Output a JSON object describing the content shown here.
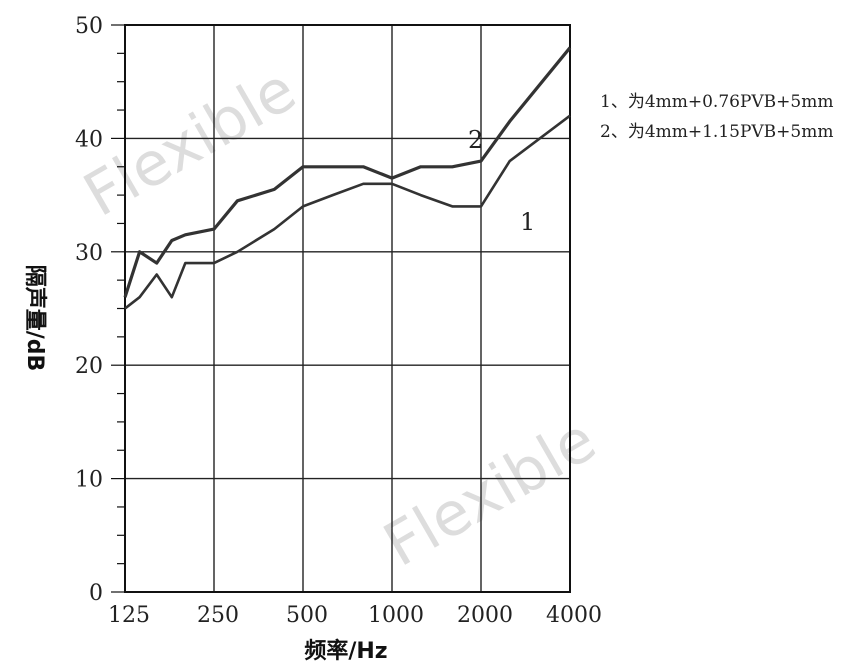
{
  "chart_data": {
    "type": "line",
    "x": [
      125,
      140,
      160,
      180,
      200,
      250,
      300,
      400,
      500,
      630,
      800,
      1000,
      1250,
      1600,
      2000,
      2500,
      4000
    ],
    "series": [
      {
        "name": "1",
        "values": [
          25,
          26,
          28,
          26,
          29,
          29,
          30,
          32,
          34,
          35,
          36,
          36,
          35,
          34,
          34,
          38,
          42
        ]
      },
      {
        "name": "2",
        "values": [
          26,
          30,
          29,
          31,
          31.5,
          32,
          34.5,
          35.5,
          37.5,
          37.5,
          37.5,
          36.5,
          37.5,
          37.5,
          38,
          41.5,
          48
        ]
      }
    ],
    "x_ticks": [
      "125",
      "250",
      "500",
      "1000",
      "2000",
      "4000"
    ],
    "y_ticks": [
      "0",
      "10",
      "20",
      "30",
      "40",
      "50"
    ],
    "xlabel": "频率/Hz",
    "ylabel": "隔声量/dB",
    "ylim": [
      0,
      50
    ],
    "xscale": "log",
    "grid": true,
    "series_labels": [
      "1",
      "2"
    ],
    "legend": [
      "1、为4mm+0.76PVB+5mm",
      "2、为4mm+1.15PVB+5mm"
    ],
    "legend_position": "right",
    "watermark": "Flexible",
    "colors": {
      "line": "#333333",
      "grid": "#222222"
    }
  }
}
